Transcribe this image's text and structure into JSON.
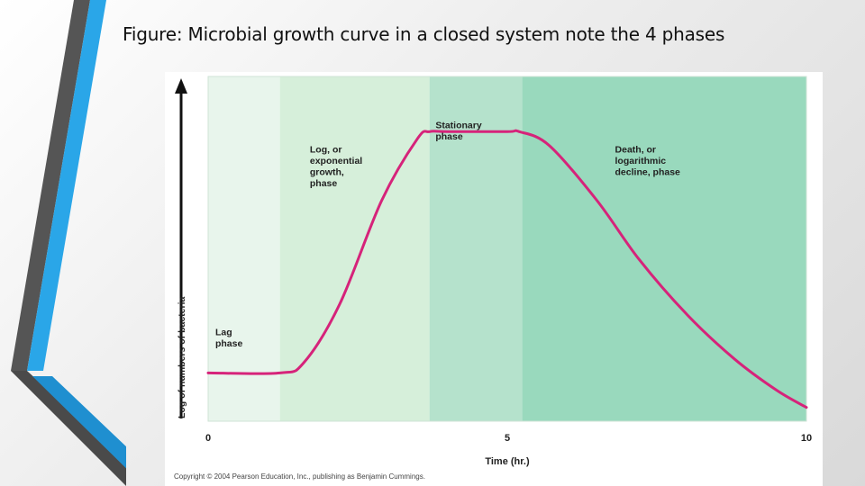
{
  "slide": {
    "title": "Figure: Microbial growth curve in a closed system note the 4 phases"
  },
  "colors": {
    "curve": "#d6237a",
    "lag_zone": "#e8f5ec",
    "log_zone": "#d6efda",
    "stationary_zone": "#b5e2cc",
    "death_zone": "#99d9bd",
    "deco_gray": "#555555",
    "deco_blue": "#2aa6e8"
  },
  "chart_data": {
    "type": "line",
    "title": "",
    "xlabel": "Time (hr.)",
    "ylabel": "Log of numbers of bacteria",
    "xlim": [
      0,
      10
    ],
    "ylim": [
      0,
      100
    ],
    "x_ticks": [
      0,
      5,
      10
    ],
    "x_tick_labels": [
      "0",
      "5",
      "10"
    ],
    "series": [
      {
        "name": "Growth curve",
        "x": [
          0,
          1.2,
          1.6,
          2.2,
          2.9,
          3.5,
          3.7,
          4.0,
          5.0,
          5.2,
          5.7,
          6.5,
          7.2,
          8.0,
          8.8,
          9.5,
          10.0
        ],
        "values": [
          14,
          14,
          17,
          34,
          64,
          82,
          84,
          84,
          84,
          84,
          80,
          64,
          47,
          31,
          18,
          9,
          4
        ]
      }
    ],
    "phases": [
      {
        "name": "lag",
        "label_lines": [
          "Lag",
          "phase"
        ],
        "x_start": 0,
        "x_end": 1.2,
        "label_x": 0.12,
        "label_y": 25
      },
      {
        "name": "log",
        "label_lines": [
          "Log, or",
          "exponential",
          "growth,",
          "phase"
        ],
        "x_start": 1.2,
        "x_end": 3.7,
        "label_x": 1.7,
        "label_y": 78
      },
      {
        "name": "stationary",
        "label_lines": [
          "Stationary",
          "phase"
        ],
        "x_start": 3.7,
        "x_end": 5.25,
        "label_x": 3.8,
        "label_y": 85
      },
      {
        "name": "death",
        "label_lines": [
          "Death, or",
          "logarithmic",
          "decline, phase"
        ],
        "x_start": 5.25,
        "x_end": 10,
        "label_x": 6.8,
        "label_y": 78
      }
    ],
    "copyright": "Copyright © 2004 Pearson Education, Inc., publishing as Benjamin Cummings."
  }
}
